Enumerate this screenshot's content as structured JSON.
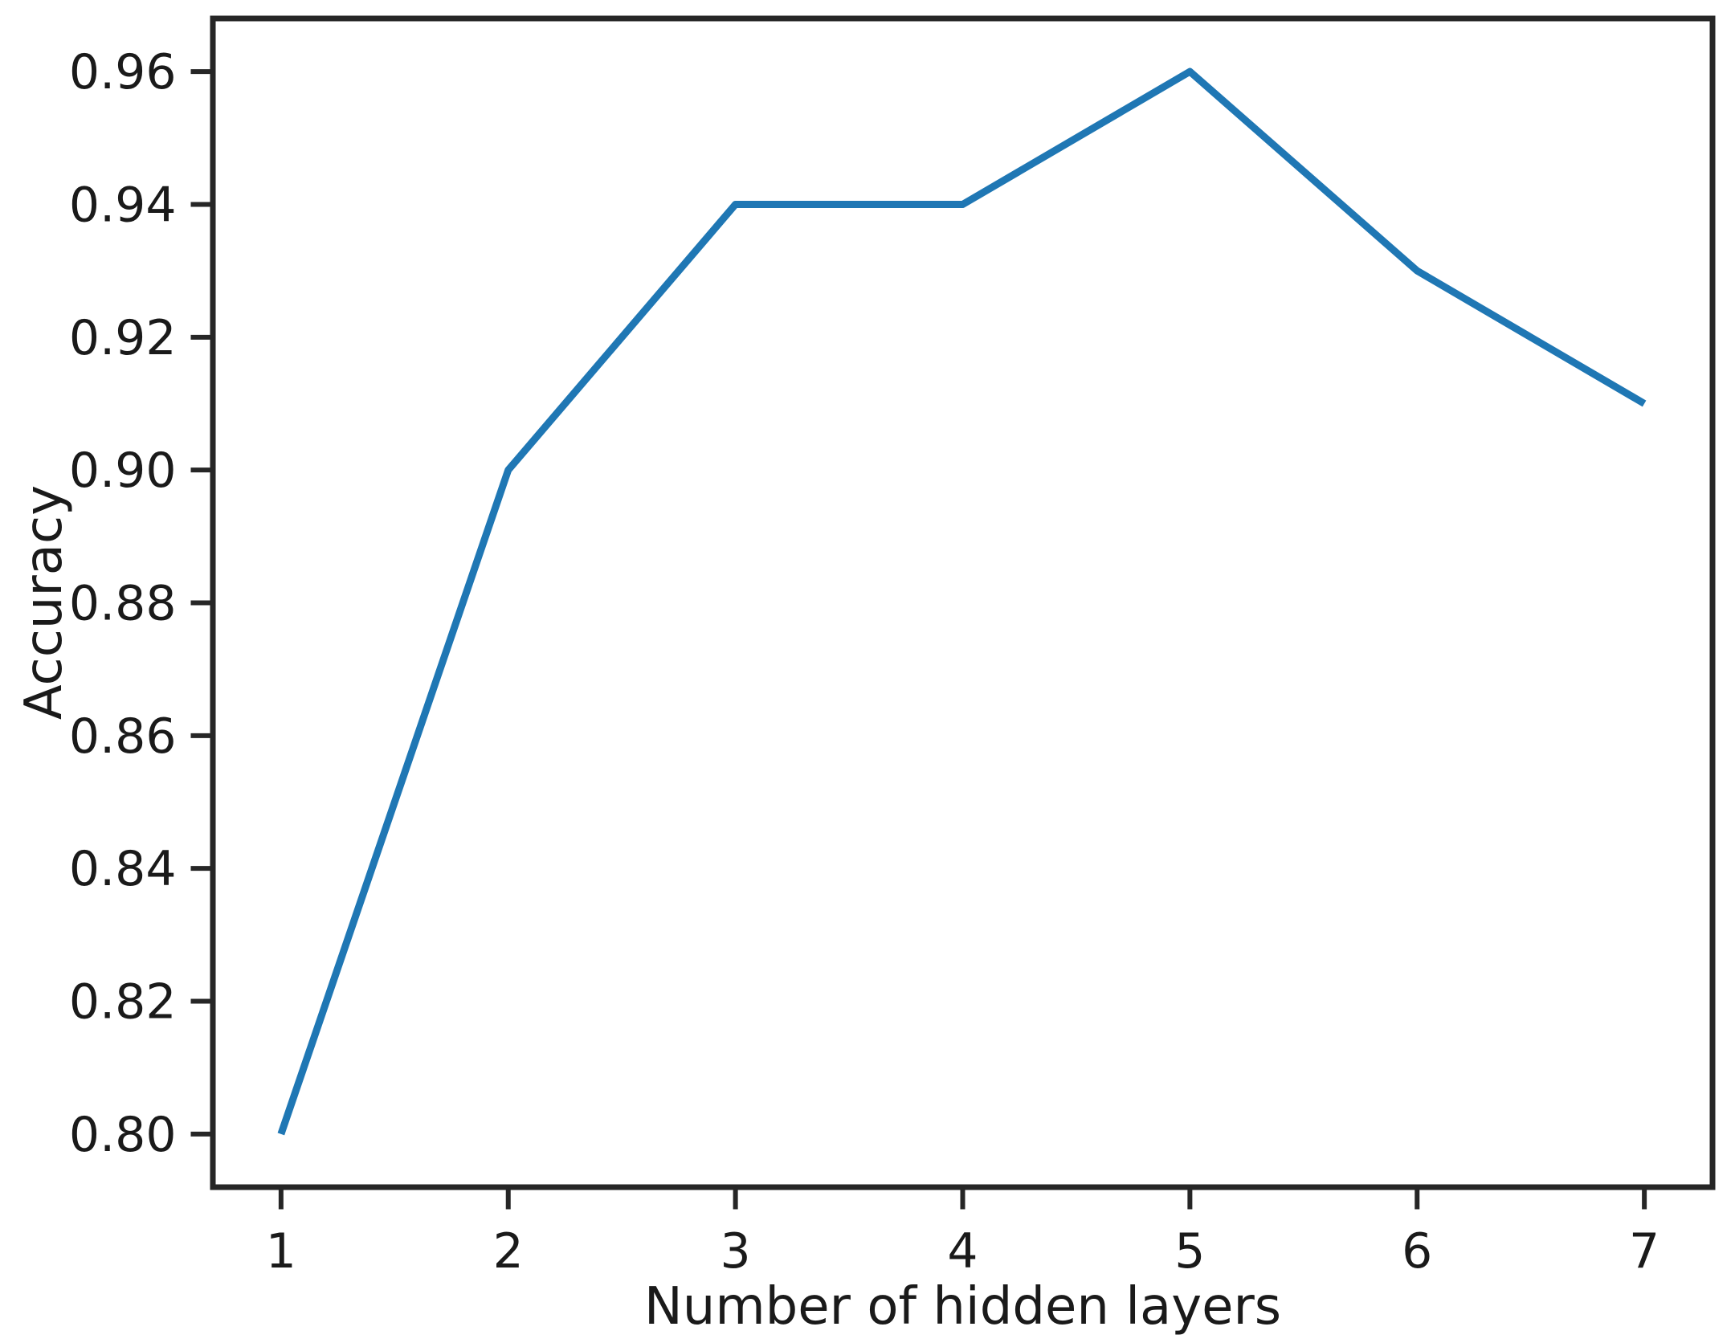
{
  "chart_data": {
    "type": "line",
    "title": "",
    "xlabel": "Number of hidden layers",
    "ylabel": "Accuracy",
    "x": [
      1,
      2,
      3,
      4,
      5,
      6,
      7
    ],
    "y": [
      0.8,
      0.9,
      0.94,
      0.94,
      0.96,
      0.93,
      0.91
    ],
    "series": [
      {
        "name": "accuracy",
        "values": [
          0.8,
          0.9,
          0.94,
          0.94,
          0.96,
          0.93,
          0.91
        ]
      }
    ],
    "xlim": [
      0.7,
      7.3
    ],
    "ylim": [
      0.792,
      0.968
    ],
    "xticks": [
      1,
      2,
      3,
      4,
      5,
      6,
      7
    ],
    "xtick_labels": [
      "1",
      "2",
      "3",
      "4",
      "5",
      "6",
      "7"
    ],
    "yticks": [
      0.8,
      0.82,
      0.84,
      0.86,
      0.88,
      0.9,
      0.92,
      0.94,
      0.96
    ],
    "ytick_labels": [
      "0.80",
      "0.82",
      "0.84",
      "0.86",
      "0.88",
      "0.90",
      "0.92",
      "0.94",
      "0.96"
    ],
    "grid": false,
    "legend": null,
    "line_color": "#1f77b4",
    "axis_color": "#262626",
    "text_color": "#1a1a1a"
  }
}
